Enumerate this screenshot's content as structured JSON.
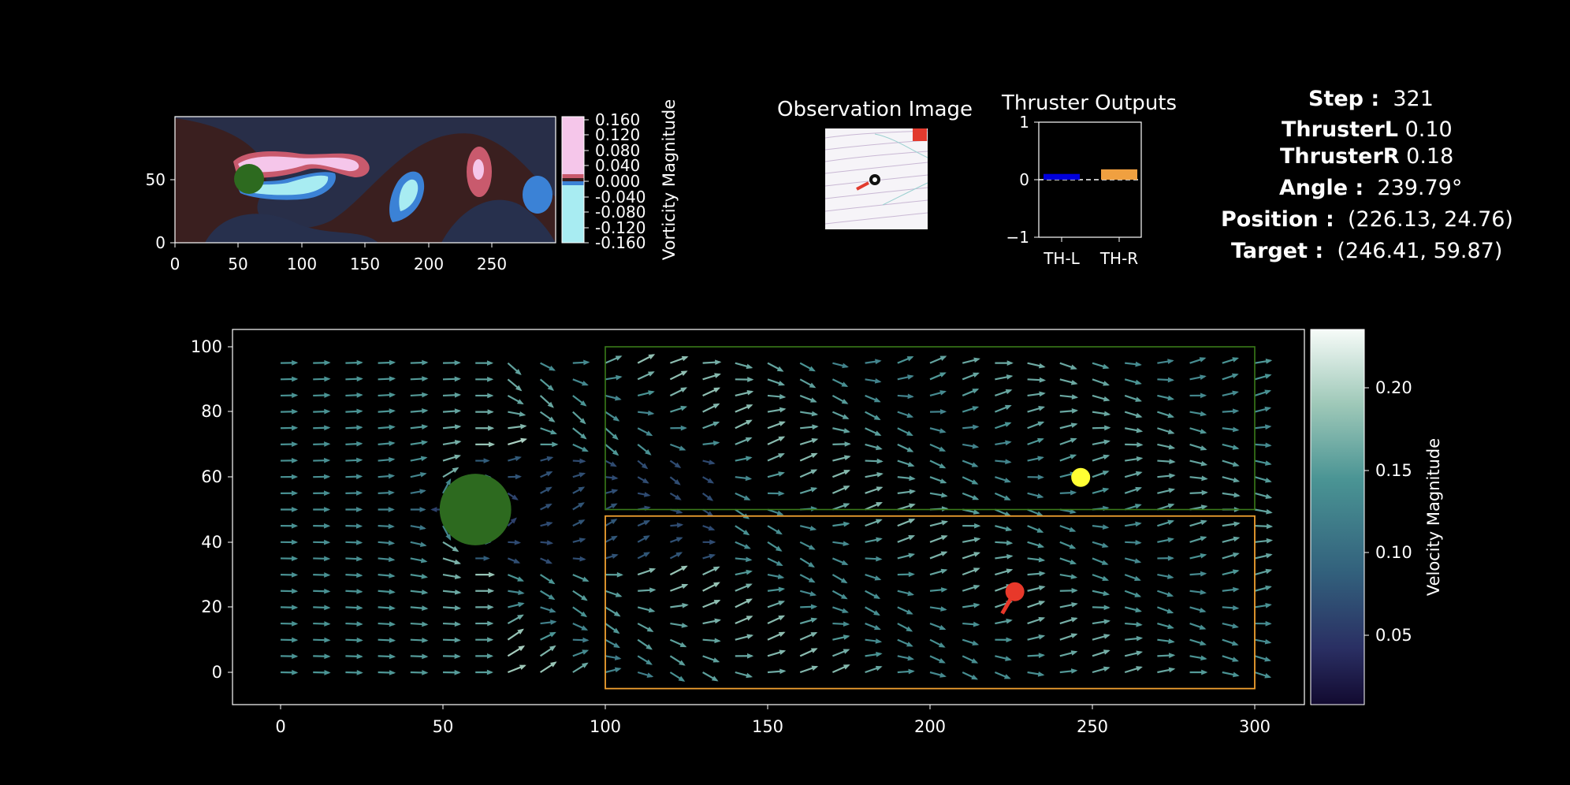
{
  "vorticity_panel": {
    "colorbar_label": "Vorticity Magnitude",
    "x_ticks": [
      "0",
      "50",
      "100",
      "150",
      "200",
      "250"
    ],
    "y_ticks": [
      "0",
      "50"
    ],
    "colorbar_ticks": [
      "0.160",
      "0.120",
      "0.080",
      "0.040",
      "0.000",
      "-0.040",
      "-0.080",
      "-0.120",
      "-0.160"
    ],
    "colors": {
      "background": "#3a1f1f",
      "dark": "#27304d",
      "pink": "#f5c6ea",
      "red": "#c95a6d",
      "cyan": "#a8ecf2",
      "blue": "#3b82d6",
      "cylinder": "#2d6a1f"
    }
  },
  "observation_panel": {
    "title": "Observation Image"
  },
  "thruster_panel": {
    "title": "Thruster Outputs",
    "y_ticks": [
      "1",
      "0",
      "−1"
    ],
    "categories": [
      "TH-L",
      "TH-R"
    ],
    "colors": [
      "#0000dd",
      "#f0a040"
    ]
  },
  "stats": {
    "step_label": "Step :",
    "step_value": "321",
    "thrusterl_label": "ThrusterL",
    "thrusterl_value": "0.10",
    "thrusterr_label": "ThrusterR",
    "thrusterr_value": "0.18",
    "angle_label": "Angle :",
    "angle_value": "239.79°",
    "position_label": "Position :",
    "position_value": "(226.13, 24.76)",
    "target_label": "Target :",
    "target_value": "(246.41, 59.87)"
  },
  "main_panel": {
    "colorbar_label": "Velocity Magnitude",
    "x_ticks": [
      "0",
      "50",
      "100",
      "150",
      "200",
      "250",
      "300"
    ],
    "y_ticks": [
      "0",
      "20",
      "40",
      "60",
      "80",
      "100"
    ],
    "colorbar_ticks": [
      "0.05",
      "0.10",
      "0.15",
      "0.20"
    ],
    "colors": {
      "cylinder": "#2d6a1f",
      "target": "#ffff33",
      "agent": "#e8382a",
      "upper_zone": "#3a7a1a",
      "lower_zone": "#f0a030"
    }
  },
  "chart_data": [
    {
      "type": "heatmap",
      "name": "vorticity field",
      "xlim": [
        0,
        300
      ],
      "ylim": [
        0,
        100
      ],
      "colorbar_label": "Vorticity Magnitude",
      "colorbar_range": [
        -0.16,
        0.16
      ],
      "cylinder": {
        "x": 60,
        "y": 50,
        "r": 12
      }
    },
    {
      "type": "bar",
      "title": "Thruster Outputs",
      "categories": [
        "TH-L",
        "TH-R"
      ],
      "values": [
        0.1,
        0.18
      ],
      "ylim": [
        -1,
        1
      ]
    },
    {
      "type": "scatter",
      "name": "velocity field",
      "xlim": [
        -15,
        315
      ],
      "ylim": [
        -10,
        105
      ],
      "colorbar_label": "Velocity Magnitude",
      "colorbar_range": [
        0.01,
        0.23
      ],
      "cylinder": {
        "x": 60,
        "y": 50,
        "r": 11
      },
      "target": {
        "x": 246.41,
        "y": 59.87
      },
      "agent": {
        "x": 226.13,
        "y": 24.76,
        "angle": 239.79
      },
      "upper_zone": {
        "x": [
          100,
          300
        ],
        "y": [
          50,
          100
        ]
      },
      "lower_zone": {
        "x": [
          100,
          300
        ],
        "y": [
          -5,
          48
        ]
      }
    }
  ]
}
